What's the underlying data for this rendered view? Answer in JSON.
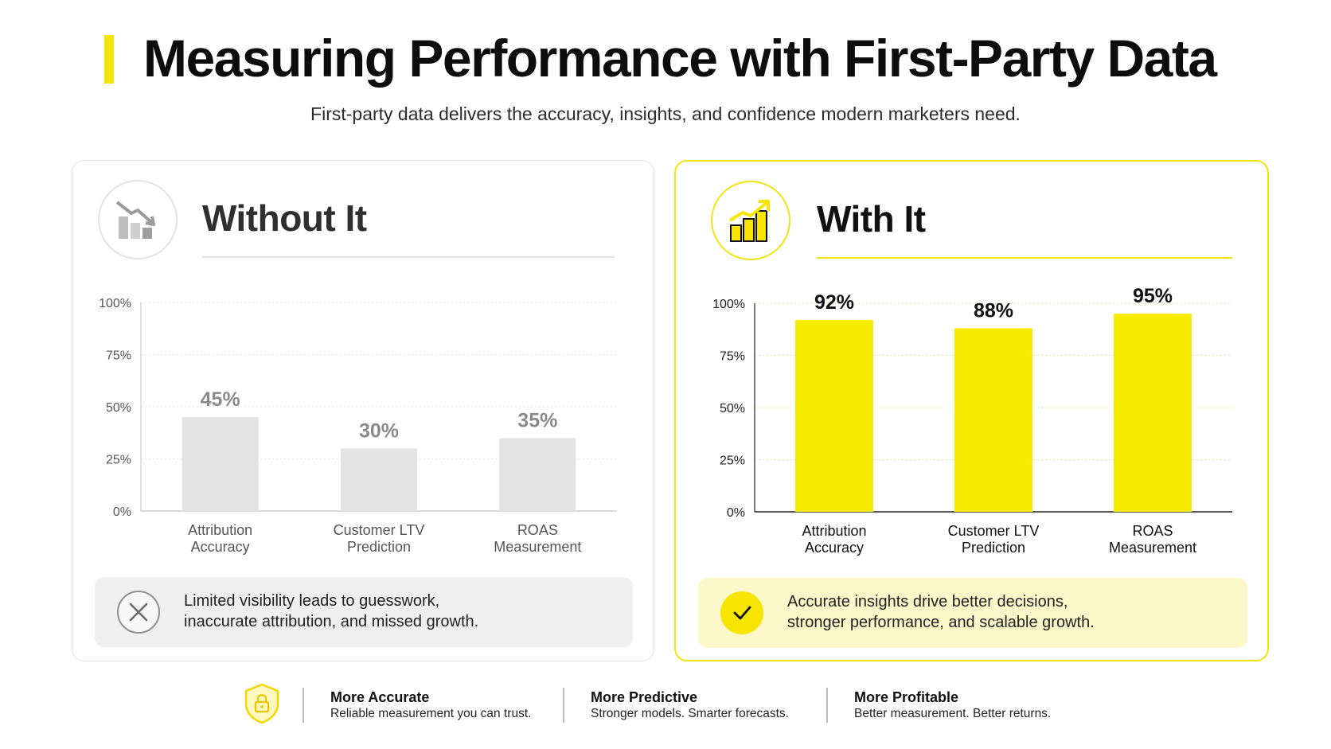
{
  "header": {
    "title": "Measuring Performance with First-Party Data",
    "subtitle": "First-party data delivers the accuracy, insights, and confidence modern marketers need."
  },
  "panels": {
    "without": {
      "heading": "Without It",
      "icon": "declining-bar-chart-icon",
      "note_lines": [
        "Limited visibility leads to guesswork,",
        "inaccurate attribution, and missed growth."
      ],
      "note_icon": "close-icon"
    },
    "with": {
      "heading": "With It",
      "icon": "rising-bar-chart-icon",
      "note_lines": [
        "Accurate insights drive better decisions,",
        "stronger performance, and scalable growth."
      ],
      "note_icon": "checkmark-icon"
    }
  },
  "footer": {
    "icon": "shield-lock-icon",
    "items": [
      {
        "title": "More Accurate",
        "subtitle": "Reliable measurement you can trust."
      },
      {
        "title": "More Predictive",
        "subtitle": "Stronger models. Smarter forecasts."
      },
      {
        "title": "More Profitable",
        "subtitle": "Better measurement. Better returns."
      }
    ]
  },
  "colors": {
    "accent_yellow": "#f7eb00",
    "muted_bar": "#e3e3e3",
    "muted_label": "#8a8a8a"
  },
  "chart_data": [
    {
      "type": "bar",
      "title": "Without It",
      "categories": [
        [
          "Attribution",
          "Accuracy"
        ],
        [
          "Customer LTV",
          "Prediction"
        ],
        [
          "ROAS",
          "Measurement"
        ]
      ],
      "values": [
        45,
        30,
        35
      ],
      "value_labels": [
        "45%",
        "30%",
        "35%"
      ],
      "ylim": [
        0,
        100
      ],
      "yticks": [
        "0%",
        "25%",
        "50%",
        "75%",
        "100%"
      ],
      "ytick_values": [
        0,
        25,
        50,
        75,
        100
      ],
      "grid": true,
      "bar_color": "#e3e3e3"
    },
    {
      "type": "bar",
      "title": "With It",
      "categories": [
        [
          "Attribution",
          "Accuracy"
        ],
        [
          "Customer LTV",
          "Prediction"
        ],
        [
          "ROAS",
          "Measurement"
        ]
      ],
      "values": [
        92,
        88,
        95
      ],
      "value_labels": [
        "92%",
        "88%",
        "95%"
      ],
      "ylim": [
        0,
        100
      ],
      "yticks": [
        "0%",
        "25%",
        "50%",
        "75%",
        "100%"
      ],
      "ytick_values": [
        0,
        25,
        50,
        75,
        100
      ],
      "grid": true,
      "bar_color": "#f7eb00"
    }
  ]
}
